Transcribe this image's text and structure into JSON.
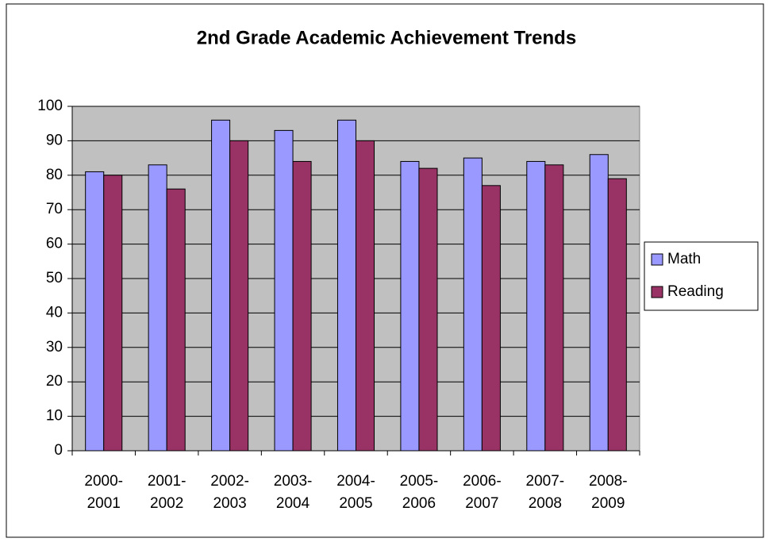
{
  "chart_data": {
    "type": "bar",
    "title": "2nd Grade Academic Achievement Trends",
    "categories": [
      "2000-2001",
      "2001-2002",
      "2002-2003",
      "2003-2004",
      "2004-2005",
      "2005-2006",
      "2006-2007",
      "2007-2008",
      "2008-2009"
    ],
    "series": [
      {
        "name": "Math",
        "color": "#9999ff",
        "values": [
          81,
          83,
          96,
          93,
          96,
          84,
          85,
          84,
          86
        ]
      },
      {
        "name": "Reading",
        "color": "#993366",
        "values": [
          80,
          76,
          90,
          84,
          90,
          82,
          77,
          83,
          79
        ]
      }
    ],
    "ylim": [
      0,
      100
    ],
    "yticks": [
      0,
      10,
      20,
      30,
      40,
      50,
      60,
      70,
      80,
      90,
      100
    ],
    "grid": true,
    "legend": "right"
  }
}
